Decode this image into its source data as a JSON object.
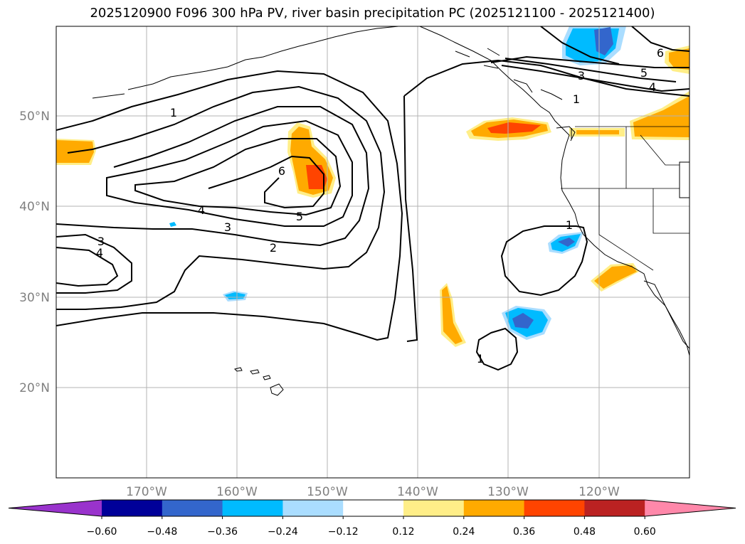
{
  "title": "2025120900 F096 300 hPa PV, river basin precipitation PC (2025121100 - 2025121400)",
  "map": {
    "lat_labels": [
      "50°N",
      "40°N",
      "30°N",
      "20°N"
    ],
    "lon_labels": [
      "170°W",
      "160°W",
      "150°W",
      "140°W",
      "130°W",
      "120°W"
    ],
    "pv_contour_labels": [
      "1",
      "6",
      "4",
      "5",
      "3",
      "2",
      "3",
      "4",
      "1",
      "1",
      "3",
      "5",
      "4",
      "6",
      "1"
    ]
  },
  "colorbar": {
    "colors": [
      "#9933cc",
      "#000099",
      "#3366cc",
      "#00bbff",
      "#aaddff",
      "#ffffff",
      "#ffee88",
      "#ffaa00",
      "#ff4400",
      "#bb2222",
      "#ff88aa"
    ],
    "tick_labels": [
      "−0.60",
      "−0.48",
      "−0.36",
      "−0.24",
      "−0.12",
      "0.12",
      "0.24",
      "0.36",
      "0.48",
      "0.60"
    ]
  }
}
